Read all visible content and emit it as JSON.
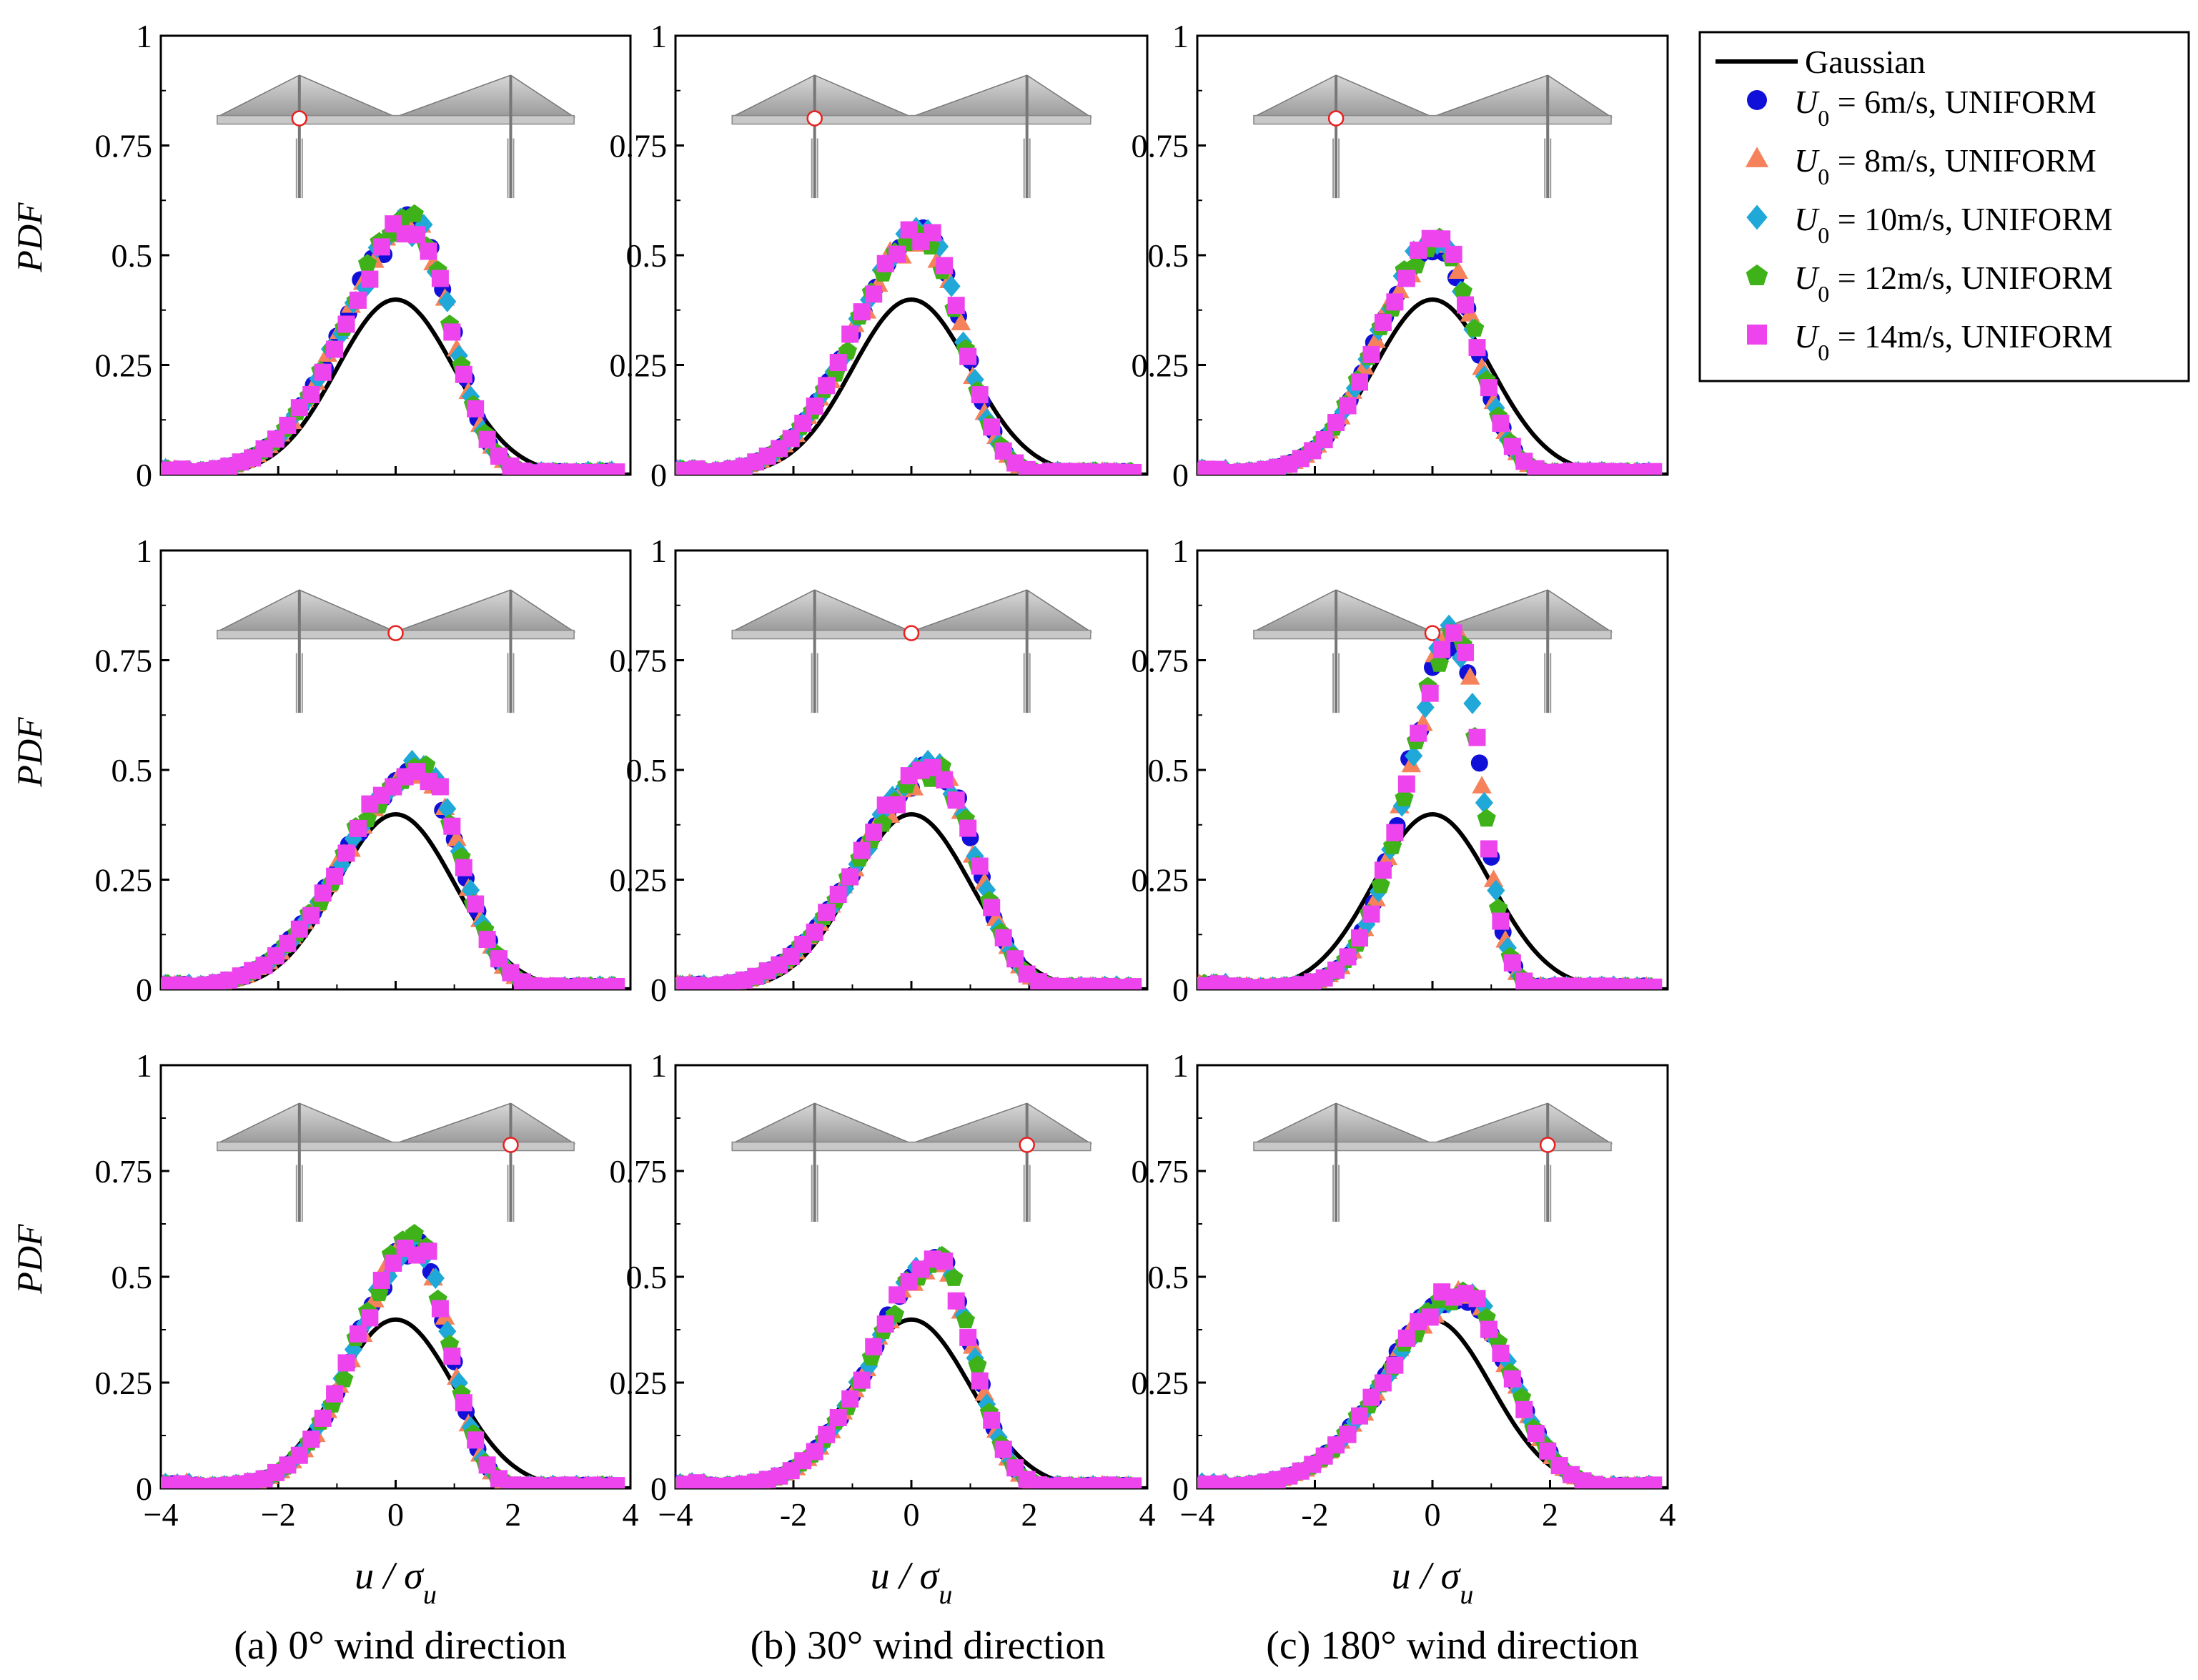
{
  "figure": {
    "colors": {
      "gaussian": "#000000",
      "U6": "#1010d8",
      "U8": "#f5825a",
      "U10": "#1fa8d8",
      "U12": "#3fb21a",
      "U14": "#ee44ee",
      "marker_ring": "#e82020"
    },
    "legend": {
      "gaussian": "Gaussian",
      "items": [
        {
          "sym": "U",
          "sub": "0",
          "text": " = 6m/s, UNIFORM",
          "marker": "circle",
          "color_key": "U6"
        },
        {
          "sym": "U",
          "sub": "0",
          "text": " = 8m/s, UNIFORM",
          "marker": "triangle",
          "color_key": "U8"
        },
        {
          "sym": "U",
          "sub": "0",
          "text": " = 10m/s, UNIFORM",
          "marker": "diamond",
          "color_key": "U10"
        },
        {
          "sym": "U",
          "sub": "0",
          "text": " = 12m/s, UNIFORM",
          "marker": "pentagon",
          "color_key": "U12"
        },
        {
          "sym": "U",
          "sub": "0",
          "text": " = 14m/s, UNIFORM",
          "marker": "square",
          "color_key": "U14"
        }
      ]
    },
    "ylabel": "PDF",
    "xlabel_main": "u / σ",
    "xlabel_sub": "u",
    "yticks": [
      "0",
      "0.25",
      "0.5",
      "0.75",
      "1"
    ],
    "xticks": [
      "−4",
      "−2",
      "0",
      "2",
      "4"
    ],
    "xticks_alt": [
      "−4",
      "-2",
      "0",
      "2",
      "4"
    ],
    "captions": [
      "(a) 0° wind direction",
      "(b) 30° wind direction",
      "(c) 180° wind direction"
    ]
  },
  "chart_data": [
    {
      "type": "scatter",
      "row": 0,
      "col": 0,
      "xlim": [
        -4,
        4
      ],
      "ylim": [
        0,
        1
      ],
      "probe": "left-tower",
      "peak": {
        "x": 0.3,
        "y": 0.57,
        "w": 0.75,
        "skew": -0.6
      }
    },
    {
      "type": "scatter",
      "row": 0,
      "col": 1,
      "xlim": [
        -4,
        4
      ],
      "ylim": [
        0,
        1
      ],
      "probe": "left-tower",
      "peak": {
        "x": 0.2,
        "y": 0.55,
        "w": 0.75,
        "skew": -0.55
      }
    },
    {
      "type": "scatter",
      "row": 0,
      "col": 2,
      "xlim": [
        -4,
        4
      ],
      "ylim": [
        0,
        1
      ],
      "probe": "left-tower",
      "peak": {
        "x": 0.1,
        "y": 0.53,
        "w": 0.72,
        "skew": -0.4
      }
    },
    {
      "type": "scatter",
      "row": 1,
      "col": 0,
      "xlim": [
        -4,
        4
      ],
      "ylim": [
        0,
        1
      ],
      "probe": "center",
      "peak": {
        "x": 0.4,
        "y": 0.51,
        "w": 0.8,
        "skew": -0.6
      }
    },
    {
      "type": "scatter",
      "row": 1,
      "col": 1,
      "xlim": [
        -4,
        4
      ],
      "ylim": [
        0,
        1
      ],
      "probe": "center",
      "peak": {
        "x": 0.4,
        "y": 0.5,
        "w": 0.8,
        "skew": -0.6
      }
    },
    {
      "type": "scatter",
      "row": 1,
      "col": 2,
      "xlim": [
        -4,
        4
      ],
      "ylim": [
        0,
        1
      ],
      "probe": "center",
      "peak": {
        "x": 0.4,
        "y": 0.8,
        "w": 0.5,
        "skew": -0.7
      }
    },
    {
      "type": "scatter",
      "row": 2,
      "col": 0,
      "xlim": [
        -4,
        4
      ],
      "ylim": [
        0,
        1
      ],
      "probe": "right-tower",
      "peak": {
        "x": 0.35,
        "y": 0.58,
        "w": 0.65,
        "skew": -0.55
      }
    },
    {
      "type": "scatter",
      "row": 2,
      "col": 1,
      "xlim": [
        -4,
        4
      ],
      "ylim": [
        0,
        1
      ],
      "probe": "right-tower",
      "peak": {
        "x": 0.45,
        "y": 0.53,
        "w": 0.7,
        "skew": -0.6
      }
    },
    {
      "type": "scatter",
      "row": 2,
      "col": 2,
      "xlim": [
        -4,
        4
      ],
      "ylim": [
        0,
        1
      ],
      "probe": "right-tower",
      "peak": {
        "x": 0.5,
        "y": 0.46,
        "w": 0.95,
        "skew": -0.3
      }
    }
  ]
}
